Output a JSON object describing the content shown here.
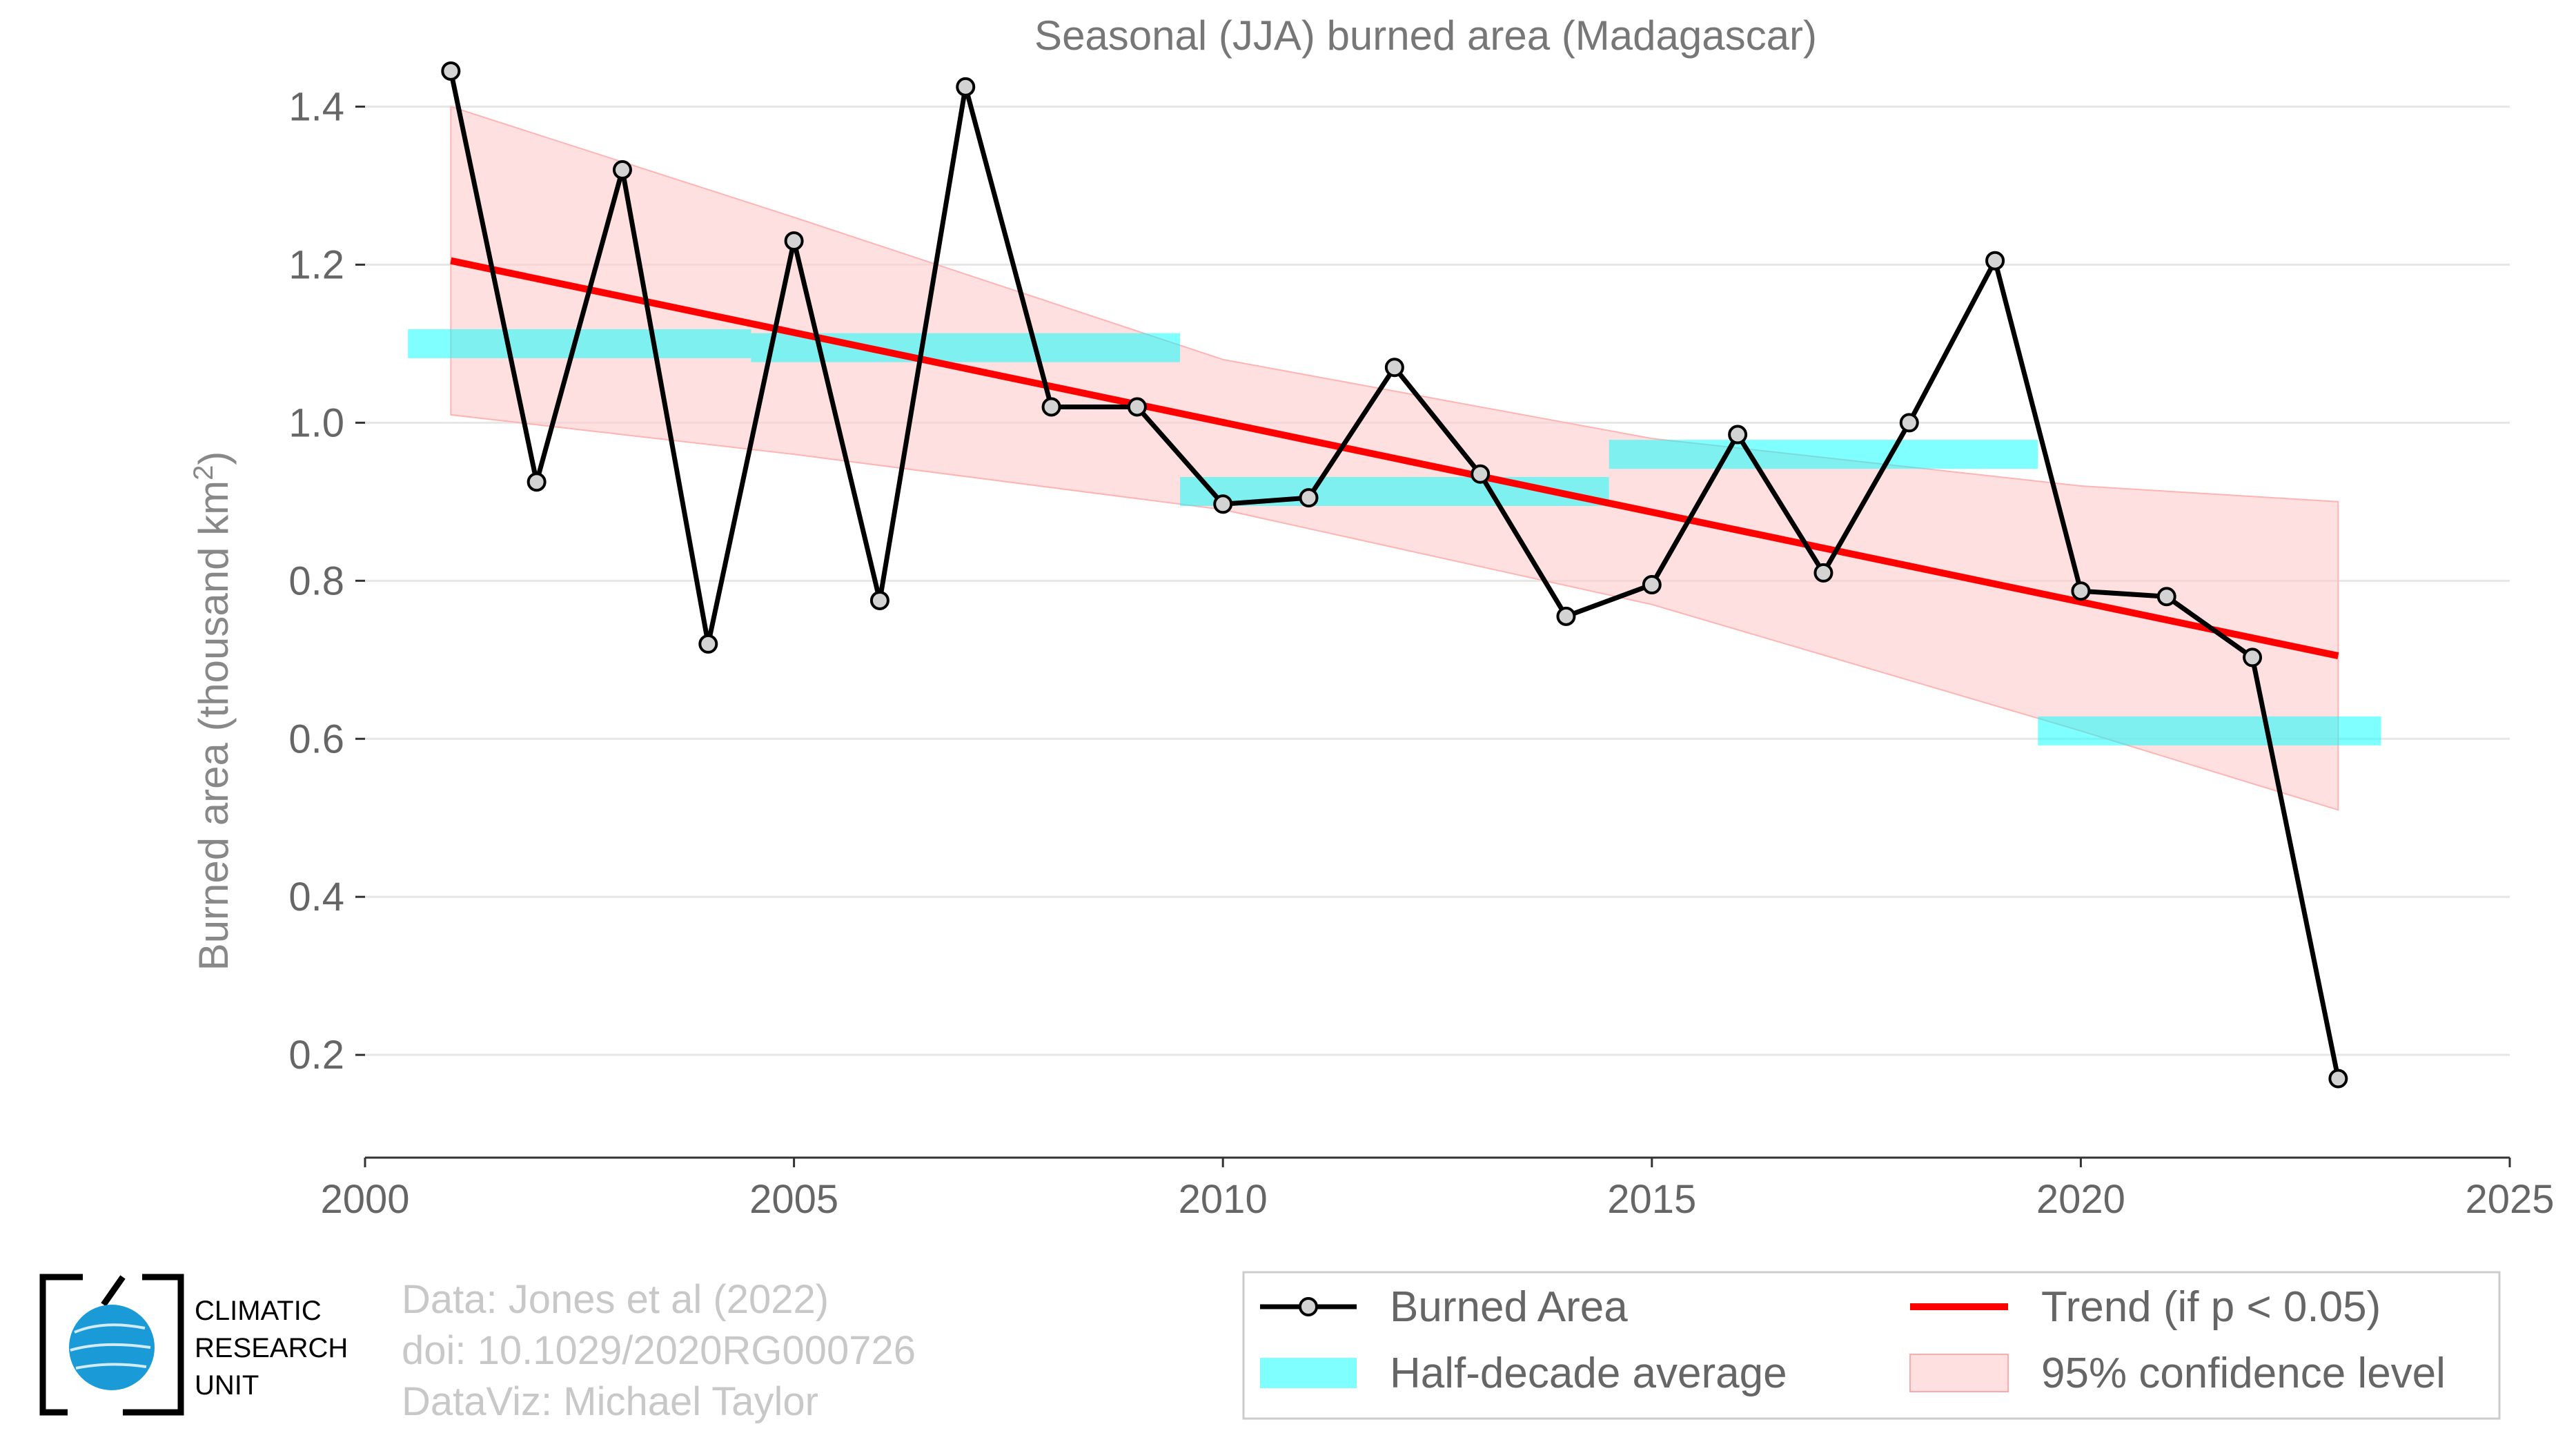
{
  "chart_data": {
    "type": "line",
    "title": "Seasonal (JJA) burned area (Madagascar)",
    "ylabel": "Burned area (thousand km",
    "ylabel_sup": "2",
    "ylabel_close": ")",
    "xlim": [
      2000,
      2025
    ],
    "ylim": [
      0.07,
      1.5
    ],
    "x_ticks": [
      2000,
      2005,
      2010,
      2015,
      2020,
      2025
    ],
    "y_ticks": [
      0.2,
      0.4,
      0.6,
      0.8,
      1.0,
      1.2,
      1.4
    ],
    "y_tick_labels": [
      "0.2",
      "0.4",
      "0.6",
      "0.8",
      "1.0",
      "1.2",
      "1.4"
    ],
    "grid": "horizontal",
    "series": [
      {
        "name": "Burned Area",
        "color": "#000000",
        "marker_fill": "#d3d3d3",
        "x": [
          2001,
          2002,
          2003,
          2004,
          2005,
          2006,
          2007,
          2008,
          2009,
          2010,
          2011,
          2012,
          2013,
          2014,
          2015,
          2016,
          2017,
          2018,
          2019,
          2020,
          2021,
          2022,
          2023
        ],
        "y": [
          1.445,
          0.925,
          1.32,
          0.72,
          1.23,
          0.775,
          1.425,
          1.02,
          1.02,
          0.897,
          0.905,
          1.07,
          0.935,
          0.755,
          0.795,
          0.985,
          0.81,
          1.0,
          1.205,
          0.787,
          0.78,
          0.703,
          0.17
        ]
      }
    ],
    "trend": {
      "name": "Trend (if p < 0.05)",
      "color": "#ff0000",
      "x": [
        2001,
        2023
      ],
      "y": [
        1.205,
        0.705
      ]
    },
    "confidence_band": {
      "name": "95% confidence level",
      "color": "#ffcccc",
      "x": [
        2001,
        2005,
        2010,
        2015,
        2020,
        2023
      ],
      "upper": [
        1.4,
        1.26,
        1.08,
        0.98,
        0.92,
        0.9
      ],
      "lower": [
        1.01,
        0.96,
        0.89,
        0.77,
        0.61,
        0.51
      ]
    },
    "half_decade_average": {
      "name": "Half-decade average",
      "color": "#00ffff",
      "segments": [
        {
          "x0": 2000.5,
          "x1": 2004.5,
          "y": 1.1
        },
        {
          "x0": 2004.5,
          "x1": 2009.5,
          "y": 1.095
        },
        {
          "x0": 2009.5,
          "x1": 2014.5,
          "y": 0.913
        },
        {
          "x0": 2014.5,
          "x1": 2019.5,
          "y": 0.96
        },
        {
          "x0": 2019.5,
          "x1": 2023.5,
          "y": 0.61
        }
      ]
    },
    "legend": {
      "placement": "bottom-right",
      "entries": [
        "Burned Area",
        "Trend (if p < 0.05)",
        "Half-decade average",
        "95% confidence level"
      ]
    }
  },
  "credits": {
    "line1": "Data: Jones et al (2022)",
    "line2": "doi: 10.1029/2020RG000726",
    "line3": "DataViz: Michael Taylor"
  },
  "logo": {
    "line1": "CLIMATIC",
    "line2": "RESEARCH",
    "line3": "UNIT",
    "globe_color": "#1a9ad6"
  }
}
